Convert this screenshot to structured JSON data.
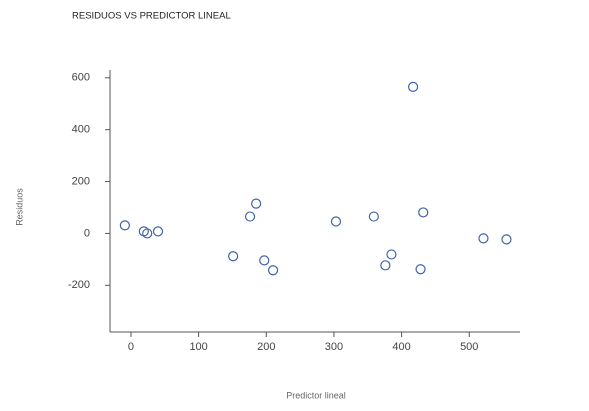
{
  "chart_data": {
    "type": "scatter",
    "title": "RESIDUOS VS PREDICTOR LINEAL",
    "x_label": "Predictor lineal",
    "y_label": "Residuos",
    "x": [
      -9,
      19,
      24,
      40,
      151,
      176,
      185,
      197,
      210,
      303,
      359,
      376,
      385,
      417,
      428,
      432,
      521,
      555
    ],
    "values": [
      31,
      8,
      0,
      8,
      -88,
      65,
      115,
      -104,
      -142,
      46,
      65,
      -123,
      -81,
      565,
      -138,
      81,
      -19,
      -23
    ],
    "color": "#3f63a8",
    "xlim": [
      -31,
      575
    ],
    "ylim": [
      -380,
      630
    ],
    "xticks": [
      0,
      100,
      200,
      300,
      400,
      500
    ],
    "yticks": [
      -200,
      0,
      200,
      400,
      600
    ]
  }
}
